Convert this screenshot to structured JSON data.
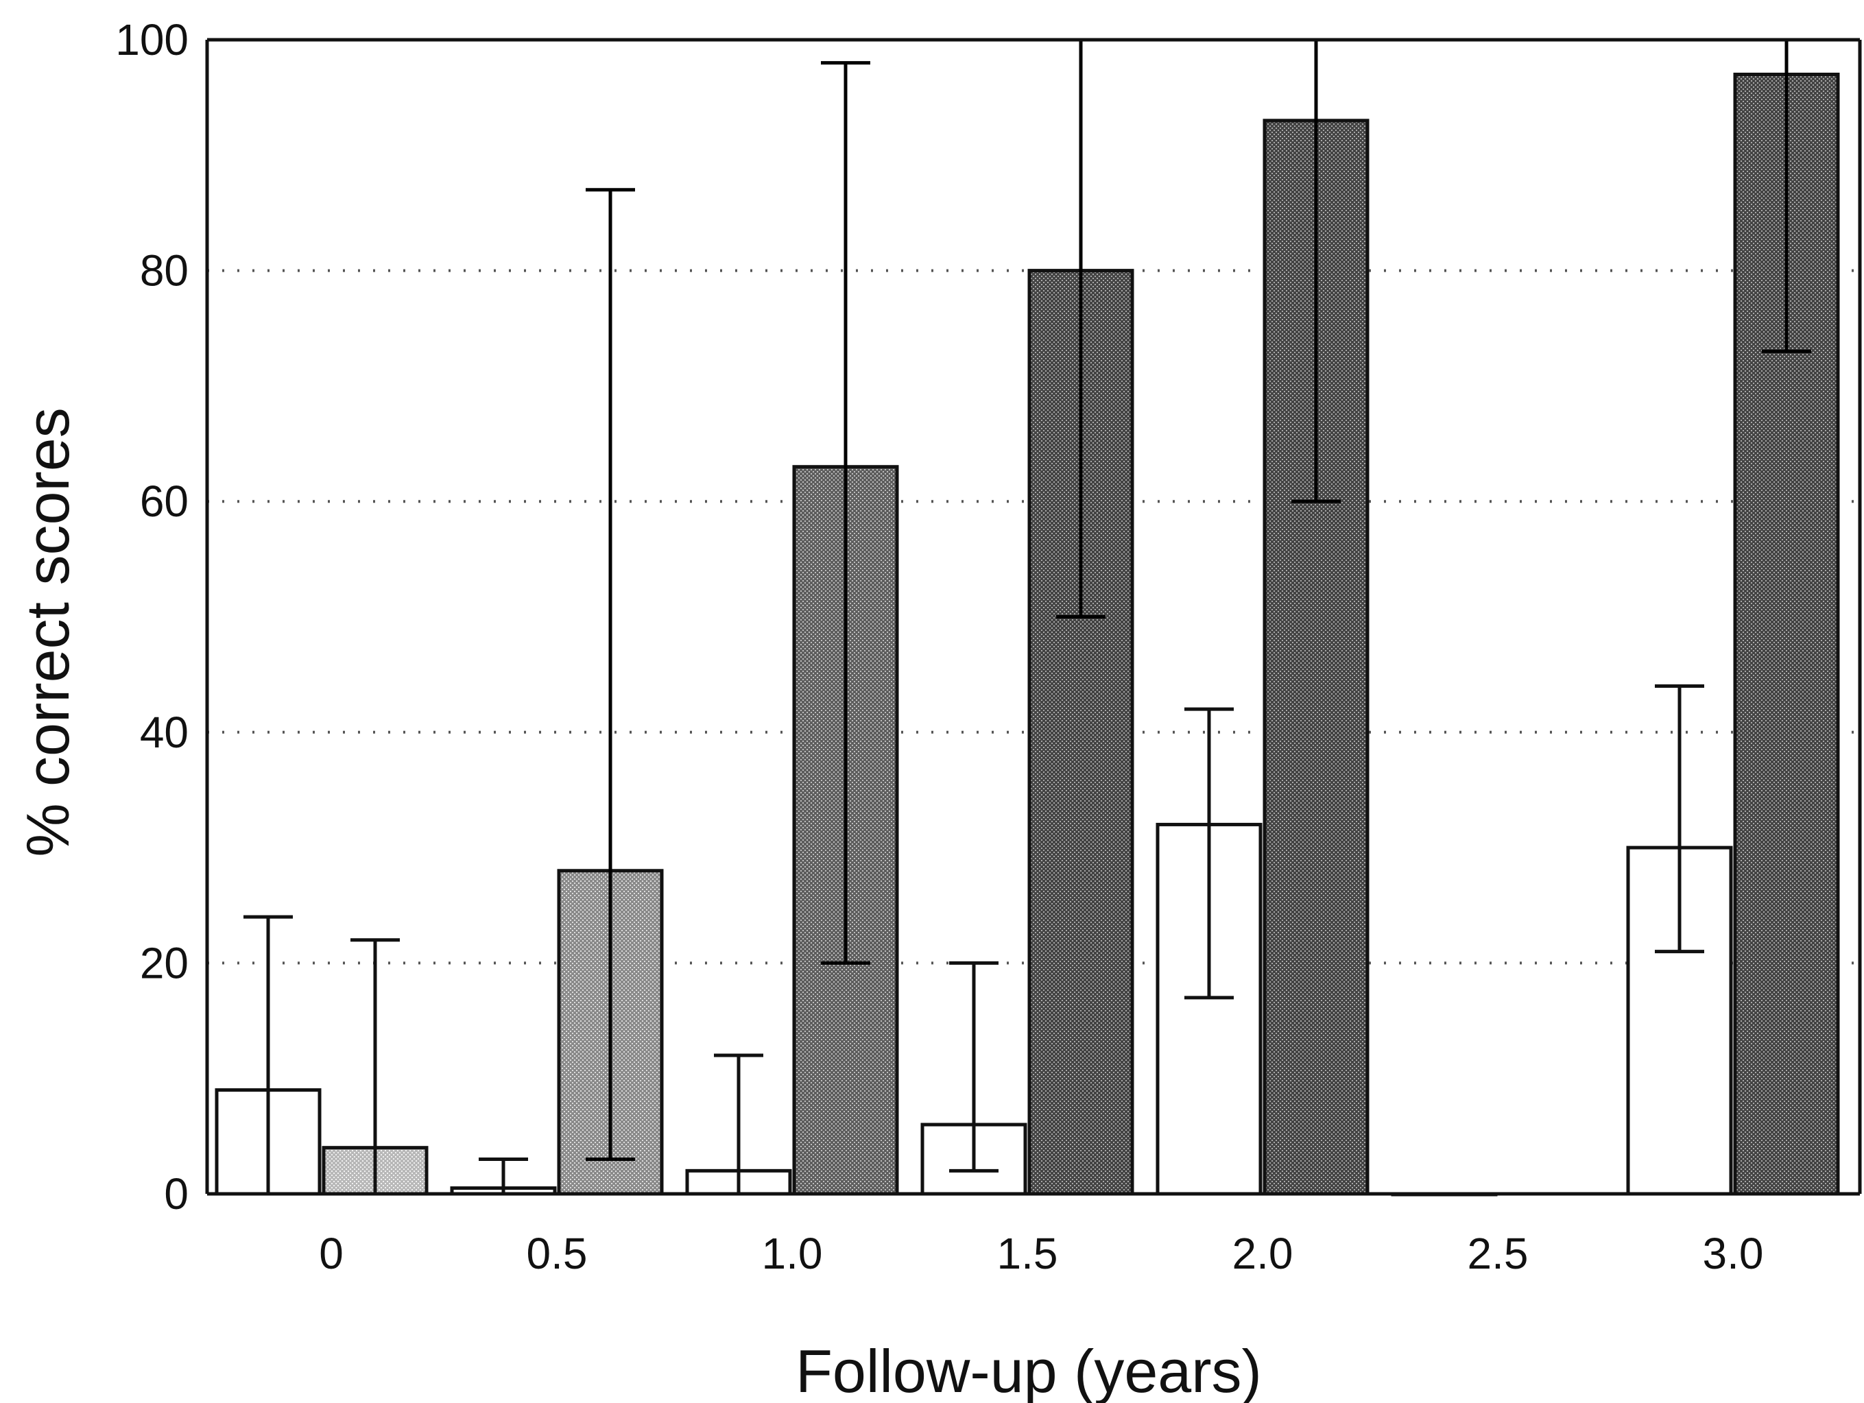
{
  "chart_data": {
    "type": "bar",
    "title": "",
    "xlabel": "Follow-up (years)",
    "ylabel": "% correct scores",
    "ylim": [
      0,
      100
    ],
    "yticks": [
      0,
      20,
      40,
      60,
      80,
      100
    ],
    "grid": "horizontal dotted",
    "categories": [
      "0",
      "0.5",
      "1.0",
      "1.5",
      "2.0",
      "2.5",
      "3.0"
    ],
    "series": [
      {
        "fill": "white",
        "values": [
          9,
          0.5,
          2,
          6,
          32,
          0,
          30
        ],
        "err_low": [
          0,
          0,
          0,
          2,
          17,
          null,
          21
        ],
        "err_high": [
          24,
          3,
          12,
          20,
          42,
          null,
          44
        ]
      },
      {
        "fill": "grey",
        "values": [
          4,
          28,
          63,
          80,
          93,
          null,
          97
        ],
        "err_low": [
          0,
          3,
          20,
          50,
          60,
          null,
          73
        ],
        "err_high": [
          22,
          87,
          98,
          100,
          100,
          null,
          100
        ]
      }
    ],
    "colors": {
      "white_bar": "#ffffff",
      "bar_light_grey": "#b8b8b8",
      "bar_mid_grey": "#8a8a8a",
      "bar_dark_grey": "#5e5e5e",
      "bar_darkest_grey": "#444444",
      "axis": "#111111",
      "grid": "#555555"
    }
  }
}
